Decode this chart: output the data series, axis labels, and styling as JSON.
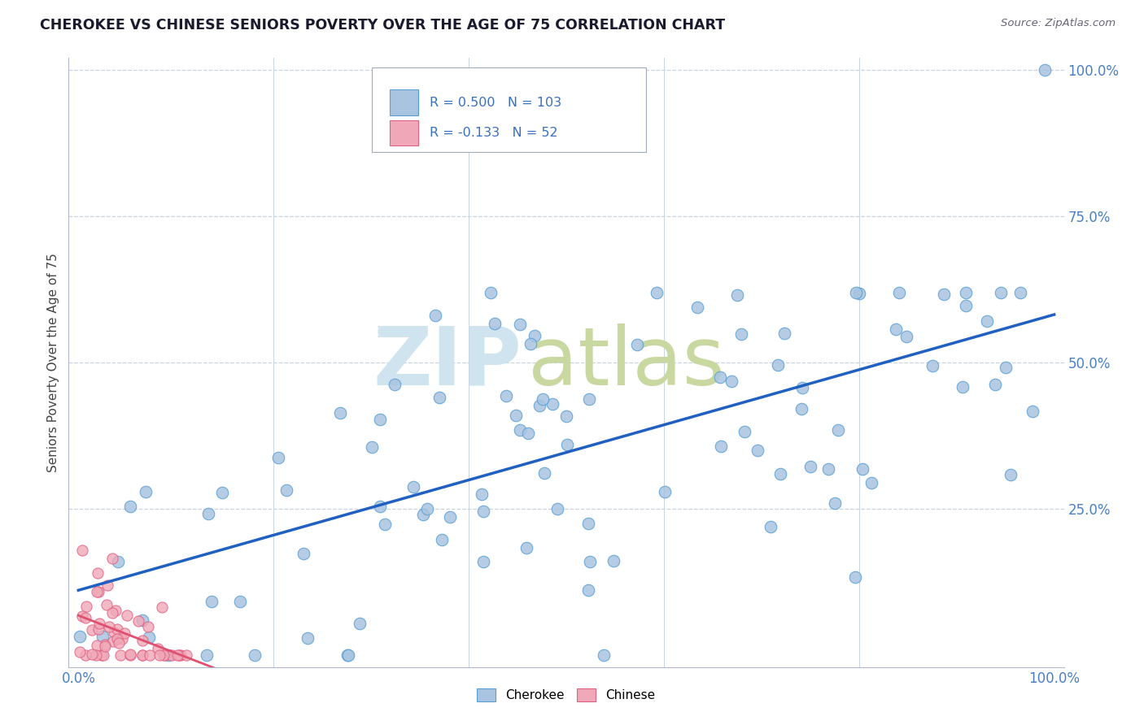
{
  "title": "CHEROKEE VS CHINESE SENIORS POVERTY OVER THE AGE OF 75 CORRELATION CHART",
  "source": "Source: ZipAtlas.com",
  "ylabel": "Seniors Poverty Over the Age of 75",
  "cherokee_color": "#a8c4e0",
  "chinese_color": "#f0a8b8",
  "cherokee_edge_color": "#5a9fd4",
  "chinese_edge_color": "#e06080",
  "cherokee_R": 0.5,
  "cherokee_N": 103,
  "chinese_R": -0.133,
  "chinese_N": 52,
  "regression_cherokee_color": "#2060c0",
  "regression_chinese_color": "#e05070",
  "regression_chinese_dash_color": "#e090a0",
  "background_color": "#ffffff",
  "grid_color": "#c8d4e0",
  "xlim": [
    -0.01,
    1.01
  ],
  "ylim": [
    -0.02,
    1.02
  ],
  "watermark_zip_color": "#d0e4f0",
  "watermark_atlas_color": "#c8d8a0"
}
